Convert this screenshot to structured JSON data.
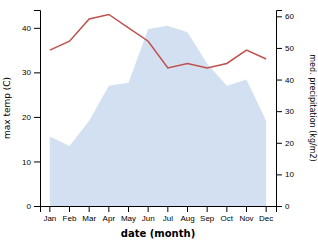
{
  "chart_data": {
    "type": "line",
    "xlabel": "date (month)",
    "ylabel": "max temp (C)",
    "y2label": "med. precipitation (kg/m2)",
    "categories": [
      "Jan",
      "Feb",
      "Mar",
      "Apr",
      "May",
      "Jun",
      "Jul",
      "Aug",
      "Sep",
      "Oct",
      "Nov",
      "Dec"
    ],
    "series": [
      {
        "type": "area",
        "axis": "y2",
        "color": "#aec6e8",
        "values": [
          22,
          19,
          27,
          38,
          39,
          56,
          57,
          55,
          45,
          38,
          40,
          27
        ]
      },
      {
        "type": "line",
        "color": "#c0504d",
        "values": [
          35,
          37,
          42,
          43,
          40,
          37,
          31,
          32,
          31,
          32,
          35,
          33
        ]
      }
    ],
    "ylim": [
      0,
      44
    ],
    "yticks": [
      0,
      10,
      20,
      30,
      40
    ],
    "y2lim": [
      0,
      62
    ],
    "y2ticks": [
      0,
      10,
      20,
      30,
      40,
      50,
      60
    ],
    "grid": false
  }
}
